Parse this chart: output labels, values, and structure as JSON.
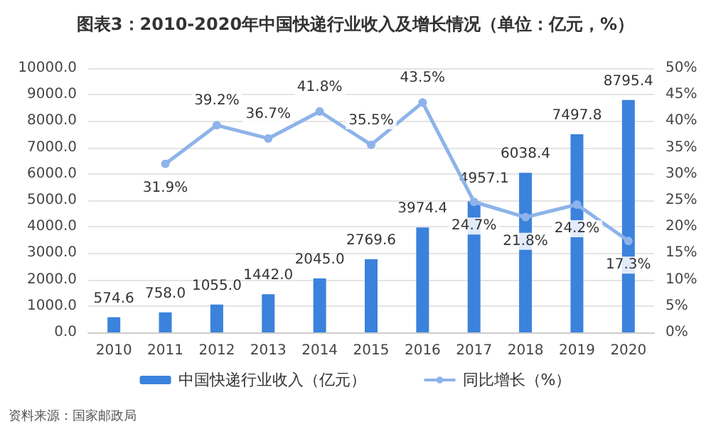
{
  "chart_data": {
    "type": "bar",
    "title": "图表3：2010-2020年中国快递行业收入及增长情况（单位：亿元，%）",
    "categories": [
      "2010",
      "2011",
      "2012",
      "2013",
      "2014",
      "2015",
      "2016",
      "2017",
      "2018",
      "2019",
      "2020"
    ],
    "series": [
      {
        "name": "中国快递行业收入（亿元）",
        "color": "#3b82dc",
        "values": [
          574.6,
          758.0,
          1055.0,
          1442.0,
          2045.0,
          2769.6,
          3974.4,
          4957.1,
          6038.4,
          7497.8,
          8795.4
        ],
        "value_labels": [
          "574.6",
          "758.0",
          "1055.0",
          "1442.0",
          "2045.0",
          "2769.6",
          "3974.4",
          "4957.1",
          "6038.4",
          "7497.8",
          "8795.4"
        ]
      },
      {
        "name": "同比增长（%）",
        "type": "line",
        "axis": "y2",
        "color": "#8db3ea",
        "values": [
          null,
          31.9,
          39.2,
          36.7,
          41.8,
          35.5,
          43.5,
          24.7,
          21.8,
          24.2,
          17.3
        ],
        "value_labels": [
          null,
          "31.9%",
          "39.2%",
          "36.7%",
          "41.8%",
          "35.5%",
          "43.5%",
          "24.7%",
          "21.8%",
          "24.2%",
          "17.3%"
        ]
      }
    ],
    "ylim": [
      0,
      10000
    ],
    "yticks": [
      {
        "value": 0,
        "label": "0.0"
      },
      {
        "value": 1000,
        "label": "1000.0"
      },
      {
        "value": 2000,
        "label": "2000.0"
      },
      {
        "value": 3000,
        "label": "3000.0"
      },
      {
        "value": 4000,
        "label": "4000.0"
      },
      {
        "value": 5000,
        "label": "5000.0"
      },
      {
        "value": 6000,
        "label": "6000.0"
      },
      {
        "value": 7000,
        "label": "7000.0"
      },
      {
        "value": 8000,
        "label": "8000.0"
      },
      {
        "value": 9000,
        "label": "9000.0"
      },
      {
        "value": 10000,
        "label": "10000.0"
      }
    ],
    "y2lim": [
      0,
      50
    ],
    "y2ticks": [
      {
        "value": 0,
        "label": "0%"
      },
      {
        "value": 5,
        "label": "5%"
      },
      {
        "value": 10,
        "label": "10%"
      },
      {
        "value": 15,
        "label": "15%"
      },
      {
        "value": 20,
        "label": "20%"
      },
      {
        "value": 25,
        "label": "25%"
      },
      {
        "value": 30,
        "label": "30%"
      },
      {
        "value": 35,
        "label": "35%"
      },
      {
        "value": 40,
        "label": "40%"
      },
      {
        "value": 45,
        "label": "45%"
      },
      {
        "value": 50,
        "label": "50%"
      }
    ],
    "grid": "y",
    "legend": "bottom",
    "marker": "circle",
    "line_style": "solid",
    "annotations": [
      "资料来源：国家邮政局"
    ]
  }
}
